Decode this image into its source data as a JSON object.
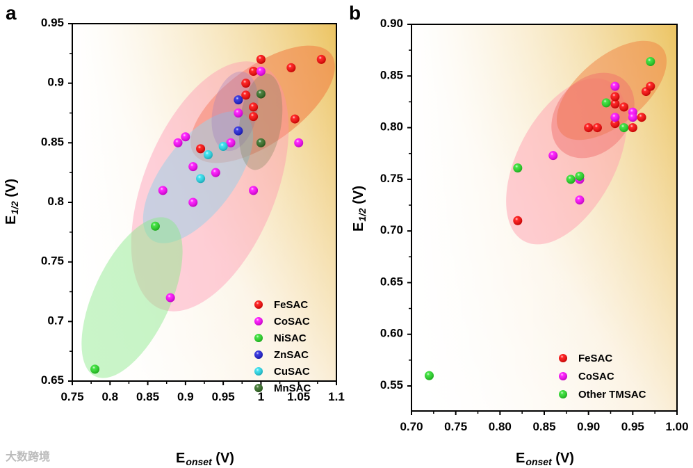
{
  "watermark": "大数跨境",
  "chart_data": [
    {
      "type": "scatter",
      "panel_label": "a",
      "xlabel": {
        "main": "E",
        "sub": "onset",
        "unit": " (V)"
      },
      "ylabel": {
        "main": "E",
        "sub": "1/2",
        "unit": " (V)"
      },
      "xlim": [
        0.75,
        1.1
      ],
      "ylim": [
        0.65,
        0.95
      ],
      "xticks": [
        "0.75",
        "0.8",
        "0.85",
        "0.9",
        "0.95",
        "1",
        "1.05",
        "1.1"
      ],
      "yticks": [
        "0.65",
        "0.7",
        "0.75",
        "0.8",
        "0.85",
        "0.9",
        "0.95"
      ],
      "legend_position": "bottom-right",
      "series": [
        {
          "name": "FeSAC",
          "color": "#ff0000",
          "points": [
            [
              1.0,
              0.92
            ],
            [
              1.08,
              0.92
            ],
            [
              1.04,
              0.913
            ],
            [
              0.99,
              0.91
            ],
            [
              0.98,
              0.9
            ],
            [
              0.98,
              0.89
            ],
            [
              0.99,
              0.88
            ],
            [
              0.99,
              0.872
            ],
            [
              1.045,
              0.87
            ],
            [
              0.92,
              0.845
            ]
          ]
        },
        {
          "name": "CoSAC",
          "color": "#ff00ff",
          "points": [
            [
              1.0,
              0.91
            ],
            [
              0.97,
              0.875
            ],
            [
              1.05,
              0.85
            ],
            [
              0.89,
              0.85
            ],
            [
              0.9,
              0.855
            ],
            [
              0.96,
              0.85
            ],
            [
              0.91,
              0.83
            ],
            [
              0.94,
              0.825
            ],
            [
              0.87,
              0.81
            ],
            [
              0.99,
              0.81
            ],
            [
              0.91,
              0.8
            ],
            [
              0.88,
              0.72
            ]
          ]
        },
        {
          "name": "NiSAC",
          "color": "#22dd22",
          "points": [
            [
              0.86,
              0.78
            ],
            [
              0.78,
              0.66
            ]
          ]
        },
        {
          "name": "ZnSAC",
          "color": "#1a1adb",
          "points": [
            [
              0.97,
              0.886
            ],
            [
              0.97,
              0.86
            ]
          ]
        },
        {
          "name": "CuSAC",
          "color": "#22ddee",
          "points": [
            [
              0.93,
              0.84
            ],
            [
              0.95,
              0.847
            ],
            [
              0.92,
              0.82
            ]
          ]
        },
        {
          "name": "MnSAC",
          "color": "#2e6b1e",
          "points": [
            [
              1.0,
              0.891
            ],
            [
              1.0,
              0.85
            ]
          ]
        }
      ]
    },
    {
      "type": "scatter",
      "panel_label": "b",
      "xlabel": {
        "main": "E",
        "sub": "onset",
        "unit": " (V)"
      },
      "ylabel": {
        "main": "E",
        "sub": "1/2",
        "unit": " (V)"
      },
      "xlim": [
        0.7,
        1.0
      ],
      "ylim": [
        0.55,
        0.9
      ],
      "xticks": [
        "0.70",
        "0.75",
        "0.80",
        "0.85",
        "0.90",
        "0.95",
        "1.00"
      ],
      "yticks": [
        "0.55",
        "0.60",
        "0.65",
        "0.70",
        "0.75",
        "0.80",
        "0.85",
        "0.90"
      ],
      "legend_position": "bottom-right",
      "series": [
        {
          "name": "FeSAC",
          "color": "#ff0000",
          "points": [
            [
              0.82,
              0.71
            ],
            [
              0.9,
              0.8
            ],
            [
              0.91,
              0.8
            ],
            [
              0.93,
              0.804
            ],
            [
              0.93,
              0.823
            ],
            [
              0.93,
              0.83
            ],
            [
              0.94,
              0.82
            ],
            [
              0.95,
              0.8
            ],
            [
              0.96,
              0.81
            ],
            [
              0.965,
              0.835
            ],
            [
              0.97,
              0.84
            ]
          ]
        },
        {
          "name": "CoSAC",
          "color": "#ff00ff",
          "points": [
            [
              0.93,
              0.84
            ],
            [
              0.93,
              0.81
            ],
            [
              0.95,
              0.815
            ],
            [
              0.95,
              0.81
            ],
            [
              0.86,
              0.773
            ],
            [
              0.89,
              0.75
            ],
            [
              0.89,
              0.73
            ]
          ]
        },
        {
          "name": "Other TMSAC",
          "color": "#22dd22",
          "points": [
            [
              0.97,
              0.864
            ],
            [
              0.92,
              0.824
            ],
            [
              0.94,
              0.8
            ],
            [
              0.82,
              0.761
            ],
            [
              0.88,
              0.75
            ],
            [
              0.89,
              0.753
            ],
            [
              0.72,
              0.56
            ]
          ]
        }
      ]
    }
  ]
}
